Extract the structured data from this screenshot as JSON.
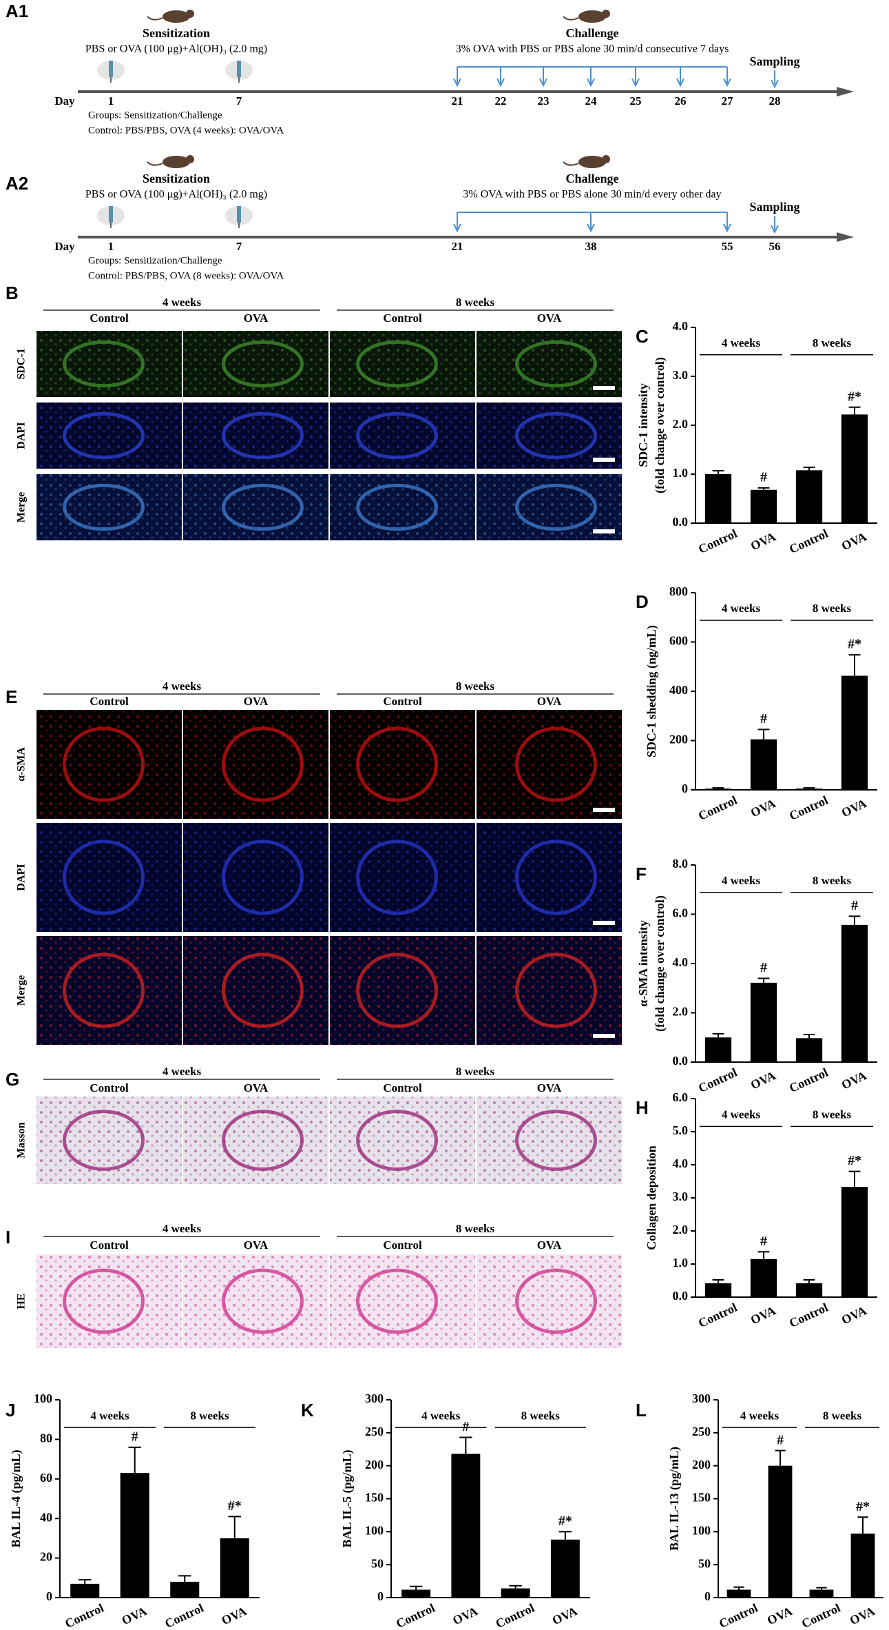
{
  "figure": {
    "A1": {
      "label": "A1",
      "sensitization": "Sensitization",
      "sensitization_text": "PBS or OVA (100 μg)+Al(OH)₃ (2.0 mg)",
      "challenge": "Challenge",
      "challenge_text": "3% OVA with PBS or PBS alone 30 min/d  consecutive 7 days",
      "sampling": "Sampling",
      "day": "Day",
      "days": [
        1,
        7,
        21,
        22,
        23,
        24,
        25,
        26,
        27,
        28
      ],
      "groups": "Groups: Sensitization/Challenge",
      "control": "Control: PBS/PBS,  OVA (4 weeks): OVA/OVA"
    },
    "A2": {
      "label": "A2",
      "sensitization": "Sensitization",
      "sensitization_text": "PBS or OVA (100 μg)+Al(OH)₃ (2.0 mg)",
      "challenge": "Challenge",
      "challenge_text": "3% OVA with PBS or PBS alone 30 min/d every other day",
      "sampling": "Sampling",
      "day": "Day",
      "days": [
        1,
        7,
        21,
        38,
        55,
        56
      ],
      "groups": "Groups: Sensitization/Challenge",
      "control": "Control: PBS/PBS,  OVA (8 weeks): OVA/OVA"
    },
    "B": {
      "label": "B",
      "groups": [
        "4 weeks",
        "8 weeks"
      ],
      "columns": [
        "Control",
        "OVA",
        "Control",
        "OVA"
      ],
      "rows": [
        "SDC-1",
        "DAPI",
        "Merge"
      ]
    },
    "E": {
      "label": "E",
      "groups": [
        "4 weeks",
        "8 weeks"
      ],
      "columns": [
        "Control",
        "OVA",
        "Control",
        "OVA"
      ],
      "rows": [
        "α-SMA",
        "DAPI",
        "Merge"
      ]
    },
    "G": {
      "label": "G",
      "groups": [
        "4 weeks",
        "8 weeks"
      ],
      "columns": [
        "Control",
        "OVA",
        "Control",
        "OVA"
      ],
      "rows": [
        "Masson"
      ]
    },
    "I": {
      "label": "I",
      "groups": [
        "4 weeks",
        "8 weeks"
      ],
      "columns": [
        "Control",
        "OVA",
        "Control",
        "OVA"
      ],
      "rows": [
        "HE"
      ]
    }
  },
  "chart_data": [
    {
      "type": "bar",
      "label": "C",
      "y_label": [
        "SDC-1 intensity",
        "(fold change over control)"
      ],
      "groups": [
        "4 weeks",
        "8 weeks"
      ],
      "categories": [
        "Control",
        "OVA",
        "Control",
        "OVA"
      ],
      "values": [
        1.0,
        0.68,
        1.08,
        2.22
      ],
      "errors": [
        0.07,
        0.04,
        0.06,
        0.15
      ],
      "annotations": [
        null,
        "#",
        null,
        "#*"
      ],
      "color": "#000000",
      "ylim": [
        0,
        4
      ],
      "yticks": [
        {
          "value": 0,
          "label": "0.0"
        },
        {
          "value": 1,
          "label": "1.0"
        },
        {
          "value": 2,
          "label": "2.0"
        },
        {
          "value": 3,
          "label": "3.0"
        },
        {
          "value": 4,
          "label": "4.0"
        }
      ]
    },
    {
      "type": "bar",
      "label": "D",
      "y_label": [
        "SDC-1 shedding (ng/mL)"
      ],
      "groups": [
        "4 weeks",
        "8 weeks"
      ],
      "categories": [
        "Control",
        "OVA",
        "Control",
        "OVA"
      ],
      "values": [
        5,
        205,
        5,
        463
      ],
      "errors": [
        3,
        40,
        3,
        85
      ],
      "annotations": [
        null,
        "#",
        null,
        "#*"
      ],
      "color": "#000000",
      "ylim": [
        0,
        800
      ],
      "yticks": [
        0,
        200,
        400,
        600,
        800
      ]
    },
    {
      "type": "bar",
      "label": "F",
      "y_label": [
        "α-SMA intensity",
        "(fold change over control)"
      ],
      "groups": [
        "4 weeks",
        "8 weeks"
      ],
      "categories": [
        "Control",
        "OVA",
        "Control",
        "OVA"
      ],
      "values": [
        1.0,
        3.22,
        0.97,
        5.57
      ],
      "errors": [
        0.15,
        0.18,
        0.15,
        0.35
      ],
      "annotations": [
        null,
        "#",
        null,
        "#"
      ],
      "color": "#000000",
      "ylim": [
        0,
        8
      ],
      "yticks": [
        {
          "value": 0,
          "label": "0.0"
        },
        {
          "value": 2,
          "label": "2.0"
        },
        {
          "value": 4,
          "label": "4.0"
        },
        {
          "value": 6,
          "label": "6.0"
        },
        {
          "value": 8,
          "label": "8.0"
        }
      ]
    },
    {
      "type": "bar",
      "label": "H",
      "y_label": [
        "Collagen deposition"
      ],
      "groups": [
        "4 weeks",
        "8 weeks"
      ],
      "categories": [
        "Control",
        "OVA",
        "Control",
        "OVA"
      ],
      "values": [
        0.42,
        1.15,
        0.42,
        3.33
      ],
      "errors": [
        0.1,
        0.22,
        0.1,
        0.47
      ],
      "annotations": [
        null,
        "#",
        null,
        "#*"
      ],
      "color": "#000000",
      "ylim": [
        0,
        6
      ],
      "yticks": [
        {
          "value": 0,
          "label": "0.0"
        },
        {
          "value": 1,
          "label": "1.0"
        },
        {
          "value": 2,
          "label": "2.0"
        },
        {
          "value": 3,
          "label": "3.0"
        },
        {
          "value": 4,
          "label": "4.0"
        },
        {
          "value": 5,
          "label": "5.0"
        },
        {
          "value": 6,
          "label": "6.0"
        }
      ]
    },
    {
      "type": "bar",
      "label": "J",
      "y_label": [
        "BAL IL-4 (pg/mL)"
      ],
      "groups": [
        "4 weeks",
        "8 weeks"
      ],
      "categories": [
        "Control",
        "OVA",
        "Control",
        "OVA"
      ],
      "values": [
        7,
        63,
        8,
        30
      ],
      "errors": [
        2,
        13,
        3,
        11
      ],
      "annotations": [
        null,
        "#",
        null,
        "#*"
      ],
      "color": "#000000",
      "ylim": [
        0,
        100
      ],
      "yticks": [
        0,
        20,
        40,
        60,
        80,
        100
      ]
    },
    {
      "type": "bar",
      "label": "K",
      "y_label": [
        "BAL IL-5 (pg/mL)"
      ],
      "groups": [
        "4 weeks",
        "8 weeks"
      ],
      "categories": [
        "Control",
        "OVA",
        "Control",
        "OVA"
      ],
      "values": [
        12,
        218,
        14,
        88
      ],
      "errors": [
        5,
        25,
        4,
        12
      ],
      "annotations": [
        null,
        "#",
        null,
        "#*"
      ],
      "color": "#000000",
      "ylim": [
        0,
        300
      ],
      "yticks": [
        0,
        50,
        100,
        150,
        200,
        250,
        300
      ]
    },
    {
      "type": "bar",
      "label": "L",
      "y_label": [
        "BAL IL-13 (pg/mL)"
      ],
      "groups": [
        "4 weeks",
        "8 weeks"
      ],
      "categories": [
        "Control",
        "OVA",
        "Control",
        "OVA"
      ],
      "values": [
        12,
        200,
        12,
        97
      ],
      "errors": [
        4,
        23,
        3,
        25
      ],
      "annotations": [
        null,
        "#",
        null,
        "#*"
      ],
      "color": "#000000",
      "ylim": [
        0,
        300
      ],
      "yticks": [
        0,
        50,
        100,
        150,
        200,
        250,
        300
      ]
    }
  ]
}
